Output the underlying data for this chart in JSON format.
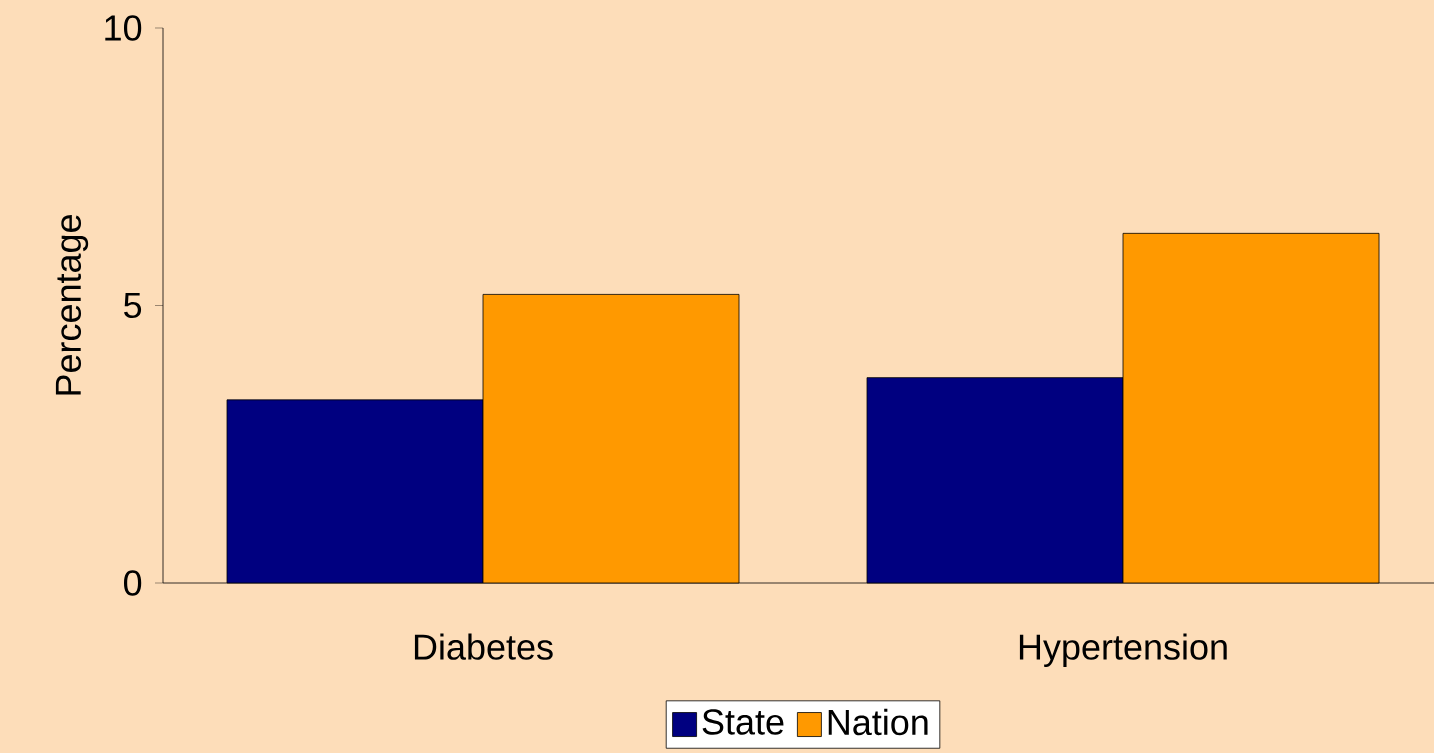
{
  "chart_data": {
    "type": "bar",
    "ylabel": "Percentage",
    "categories": [
      "Diabetes",
      "Hypertension"
    ],
    "series": [
      {
        "name": "State",
        "color": "#000080",
        "values": [
          3.3,
          3.7
        ]
      },
      {
        "name": "Nation",
        "color": "#ff9900",
        "values": [
          5.2,
          6.3
        ]
      }
    ],
    "ylim": [
      0,
      10
    ],
    "yticks": [
      0,
      5,
      10
    ],
    "legend": "bottom"
  }
}
